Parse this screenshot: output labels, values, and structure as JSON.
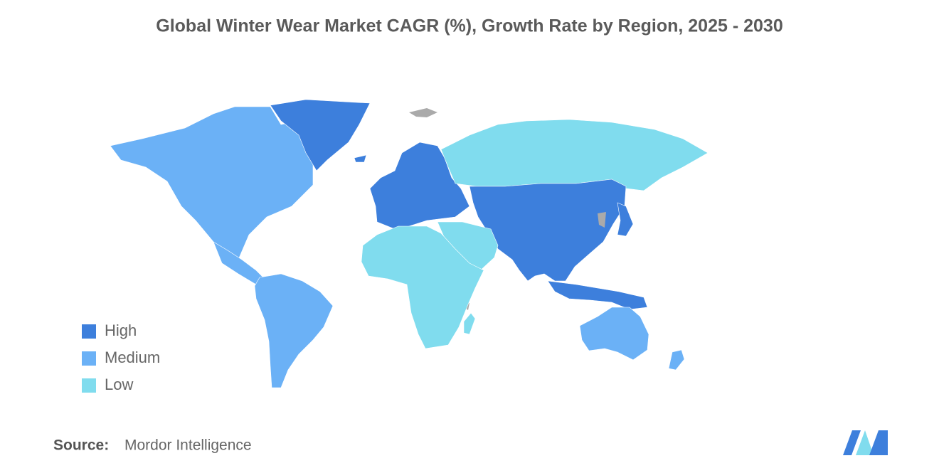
{
  "chart_data": {
    "type": "map",
    "title": "Global Winter Wear Market CAGR (%), Growth Rate by Region, 2025 - 2030",
    "legend": [
      {
        "name": "High",
        "color": "#3d7fdc"
      },
      {
        "name": "Medium",
        "color": "#6bb1f6"
      },
      {
        "name": "Low",
        "color": "#80dcee"
      }
    ],
    "source_label": "Source:",
    "source": "Mordor Intelligence"
  }
}
